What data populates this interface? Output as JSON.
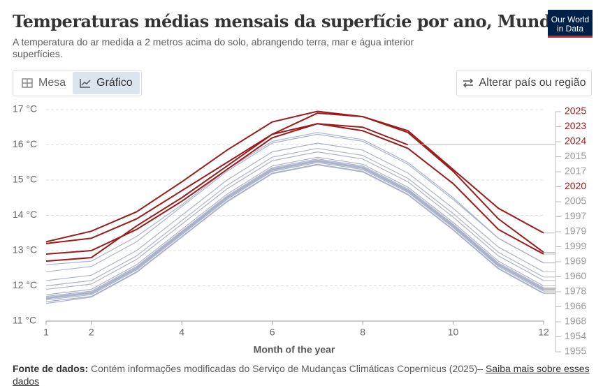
{
  "ui": {
    "logo": "Our World in Data",
    "tabs": [
      "Mesa",
      "Gráfico"
    ],
    "change_button": "Alterar país ou região",
    "source_label": "Fonte de dados:",
    "source_text": "Contém informações modificadas do Serviço de Mudanças Climáticas Copernicus (2025)–",
    "source_link": "Saiba mais sobre esses dados"
  },
  "chart_data": {
    "type": "line",
    "title": "Temperaturas médias mensais da superfície por ano, Mundo",
    "subtitle": "A temperatura do ar medida a 2 metros acima do solo, abrangendo terra, mar e água interior superfícies.",
    "xlabel": "Month of the year",
    "x": [
      1,
      2,
      3,
      4,
      5,
      6,
      7,
      8,
      9,
      10,
      11,
      12
    ],
    "xlim": [
      1,
      12
    ],
    "xticks": [
      1,
      2,
      4,
      6,
      8,
      10,
      12
    ],
    "ylim": [
      11,
      17
    ],
    "yticks": [
      {
        "value": 11,
        "label": "11 °C"
      },
      {
        "value": 12,
        "label": "12 °C"
      },
      {
        "value": 13,
        "label": "13 °C"
      },
      {
        "value": 14,
        "label": "14 °C"
      },
      {
        "value": 15,
        "label": "15 °C"
      },
      {
        "value": 16,
        "label": "16 °C"
      },
      {
        "value": 17,
        "label": "17 °C"
      }
    ],
    "grid": true,
    "series": [
      {
        "name": "2025",
        "color": "#9a1b1b",
        "values": [
          13.2,
          13.35,
          13.9,
          14.7,
          15.5,
          16.3,
          16.6,
          16.5,
          16.0,
          null,
          null,
          null
        ]
      },
      {
        "name": "2023",
        "color": "#9a1b1b",
        "values": [
          12.7,
          12.8,
          13.7,
          14.5,
          15.4,
          16.3,
          16.9,
          16.8,
          16.4,
          15.3,
          14.2,
          13.5
        ]
      },
      {
        "name": "2024",
        "color": "#9a1b1b",
        "values": [
          13.25,
          13.55,
          14.1,
          14.95,
          15.85,
          16.65,
          16.95,
          16.8,
          16.35,
          15.25,
          13.9,
          12.95
        ]
      },
      {
        "name": "2015",
        "color": "#a3abc4",
        "values": [
          12.4,
          12.55,
          13.25,
          14.25,
          15.25,
          16.05,
          16.3,
          16.1,
          15.45,
          14.45,
          13.35,
          12.65
        ]
      },
      {
        "name": "2017",
        "color": "#a3abc4",
        "values": [
          12.6,
          12.7,
          13.4,
          14.3,
          15.3,
          16.1,
          16.35,
          16.15,
          15.5,
          14.5,
          13.35,
          12.65
        ]
      },
      {
        "name": "2020",
        "color": "#9a1b1b",
        "values": [
          12.9,
          13.0,
          13.6,
          14.4,
          15.3,
          16.2,
          16.6,
          16.4,
          15.9,
          14.9,
          13.6,
          12.9
        ]
      },
      {
        "name": "2005",
        "color": "#a3abc4",
        "values": [
          12.15,
          12.3,
          13.0,
          14.0,
          15.0,
          15.8,
          16.05,
          15.85,
          15.2,
          14.2,
          13.1,
          12.4
        ]
      },
      {
        "name": "1997",
        "color": "#a3abc4",
        "values": [
          12.0,
          12.15,
          12.85,
          13.85,
          14.85,
          15.65,
          15.9,
          15.7,
          15.05,
          14.05,
          12.95,
          12.25
        ]
      },
      {
        "name": "1979",
        "color": "#a3abc4",
        "values": [
          11.75,
          11.9,
          12.6,
          13.6,
          14.6,
          15.4,
          15.65,
          15.45,
          14.8,
          13.8,
          12.7,
          12.0
        ]
      },
      {
        "name": "1999",
        "color": "#a3abc4",
        "values": [
          11.9,
          12.05,
          12.75,
          13.75,
          14.75,
          15.55,
          15.8,
          15.6,
          14.95,
          13.95,
          12.85,
          12.15
        ]
      },
      {
        "name": "1969",
        "color": "#a3abc4",
        "values": [
          11.7,
          11.85,
          12.55,
          13.55,
          14.55,
          15.35,
          15.6,
          15.4,
          14.75,
          13.75,
          12.65,
          11.95
        ]
      },
      {
        "name": "1960",
        "color": "#a3abc4",
        "values": [
          11.65,
          11.8,
          12.5,
          13.5,
          14.5,
          15.3,
          15.55,
          15.35,
          14.7,
          13.7,
          12.6,
          11.9
        ]
      },
      {
        "name": "1978",
        "color": "#a3abc4",
        "values": [
          11.67,
          11.82,
          12.52,
          13.52,
          14.52,
          15.32,
          15.57,
          15.37,
          14.72,
          13.72,
          12.62,
          11.92
        ]
      },
      {
        "name": "1966",
        "color": "#a3abc4",
        "values": [
          11.6,
          11.75,
          12.45,
          13.45,
          14.45,
          15.25,
          15.5,
          15.3,
          14.65,
          13.65,
          12.55,
          11.85
        ]
      },
      {
        "name": "1968",
        "color": "#a3abc4",
        "values": [
          11.63,
          11.78,
          12.48,
          13.48,
          14.48,
          15.28,
          15.53,
          15.33,
          14.68,
          13.68,
          12.58,
          11.88
        ]
      },
      {
        "name": "1954",
        "color": "#a3abc4",
        "values": [
          11.55,
          11.7,
          12.4,
          13.4,
          14.4,
          15.2,
          15.45,
          15.25,
          14.6,
          13.6,
          12.5,
          11.8
        ]
      },
      {
        "name": "1955",
        "color": "#a3abc4",
        "values": [
          11.5,
          11.68,
          12.38,
          13.38,
          14.38,
          15.18,
          15.43,
          15.23,
          14.58,
          13.58,
          12.48,
          11.78
        ]
      }
    ]
  }
}
